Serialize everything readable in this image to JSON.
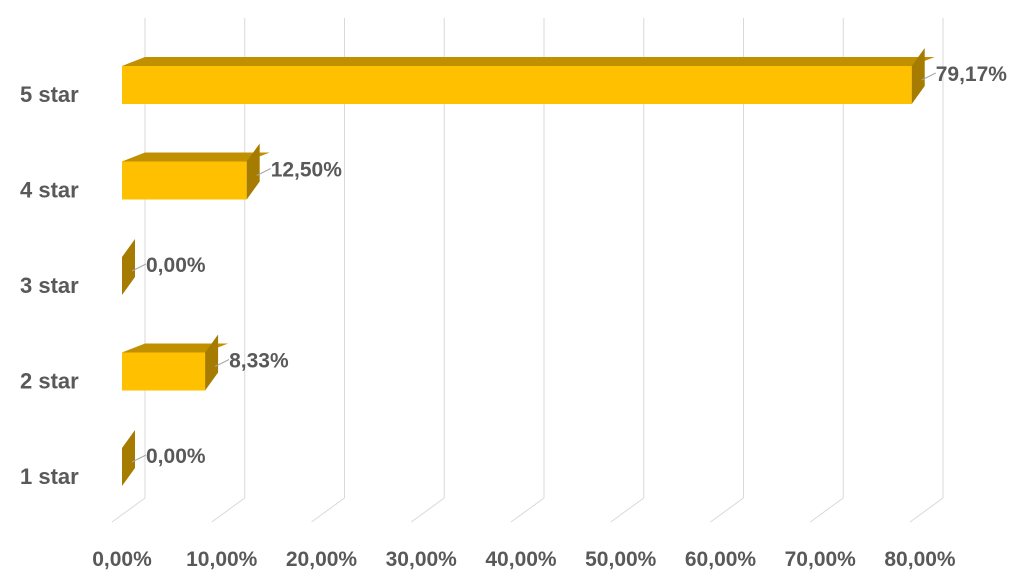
{
  "chart_data": {
    "type": "bar",
    "orientation": "horizontal",
    "style": "3d",
    "categories": [
      "5 star",
      "4 star",
      "3 star",
      "2 star",
      "1 star"
    ],
    "values": [
      79.17,
      12.5,
      0.0,
      8.33,
      0.0
    ],
    "data_labels": [
      "79,17%",
      "12,50%",
      "0,00%",
      "8,33%",
      "0,00%"
    ],
    "xlim": [
      0,
      80
    ],
    "x_ticks": [
      "0,00%",
      "10,00%",
      "20,00%",
      "30,00%",
      "40,00%",
      "50,00%",
      "60,00%",
      "70,00%",
      "80,00%"
    ],
    "grid": true,
    "legend": "none",
    "colors": {
      "bar_front": "#FFC000",
      "bar_top": "#C09000",
      "bar_side": "#A67C00",
      "grid": "#D9D9D9",
      "text": "#595959"
    }
  }
}
